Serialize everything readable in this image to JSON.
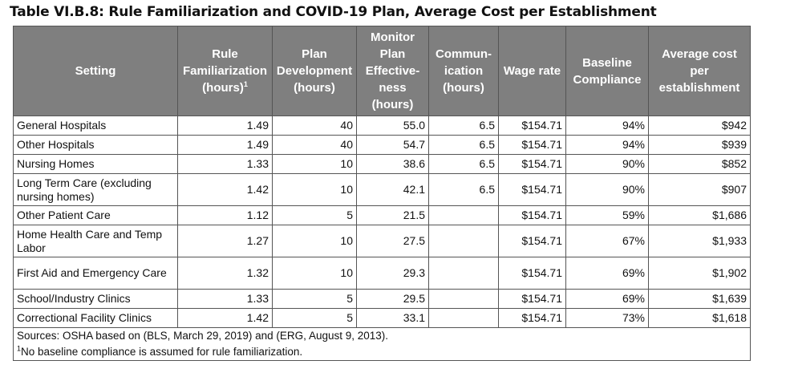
{
  "title": "Table VI.B.8: Rule Familiarization and COVID-19 Plan, Average Cost per Establishment",
  "headers": {
    "setting": "Setting",
    "rule_fam": [
      "Rule",
      "Familiarization",
      "(hours)"
    ],
    "rule_fam_sup": "1",
    "plan_dev": [
      "Plan",
      "Development",
      "(hours)"
    ],
    "monitor": [
      "Monitor",
      "Plan",
      "Effective-",
      "ness",
      "(hours)"
    ],
    "communication": [
      "Commun-",
      "ication",
      "(hours)"
    ],
    "wage": "Wage rate",
    "baseline": [
      "Baseline",
      "Compliance"
    ],
    "avg_cost": [
      "Average cost",
      "per",
      "establishment"
    ]
  },
  "rows": [
    {
      "setting": "General Hospitals",
      "rule_fam": "1.49",
      "plan_dev": "40",
      "monitor": "55.0",
      "communication": "6.5",
      "wage": "$154.71",
      "baseline": "94%",
      "avg_cost": "$942"
    },
    {
      "setting": "Other Hospitals",
      "rule_fam": "1.49",
      "plan_dev": "40",
      "monitor": "54.7",
      "communication": "6.5",
      "wage": "$154.71",
      "baseline": "94%",
      "avg_cost": "$939"
    },
    {
      "setting": "Nursing Homes",
      "rule_fam": "1.33",
      "plan_dev": "10",
      "monitor": "38.6",
      "communication": "6.5",
      "wage": "$154.71",
      "baseline": "90%",
      "avg_cost": "$852"
    },
    {
      "setting": "Long Term Care (excluding nursing homes)",
      "rule_fam": "1.42",
      "plan_dev": "10",
      "monitor": "42.1",
      "communication": "6.5",
      "wage": "$154.71",
      "baseline": "90%",
      "avg_cost": "$907",
      "tall": true
    },
    {
      "setting": "Other Patient Care",
      "rule_fam": "1.12",
      "plan_dev": "5",
      "monitor": "21.5",
      "communication": "",
      "wage": "$154.71",
      "baseline": "59%",
      "avg_cost": "$1,686"
    },
    {
      "setting": "Home Health Care and Temp Labor",
      "rule_fam": "1.27",
      "plan_dev": "10",
      "monitor": "27.5",
      "communication": "",
      "wage": "$154.71",
      "baseline": "67%",
      "avg_cost": "$1,933",
      "tall": true
    },
    {
      "setting": "First Aid and Emergency Care",
      "rule_fam": "1.32",
      "plan_dev": "10",
      "monitor": "29.3",
      "communication": "",
      "wage": "$154.71",
      "baseline": "69%",
      "avg_cost": "$1,902",
      "tall": true
    },
    {
      "setting": "School/Industry Clinics",
      "rule_fam": "1.33",
      "plan_dev": "5",
      "monitor": "29.5",
      "communication": "",
      "wage": "$154.71",
      "baseline": "69%",
      "avg_cost": "$1,639"
    },
    {
      "setting": "Correctional Facility Clinics",
      "rule_fam": "1.42",
      "plan_dev": "5",
      "monitor": "33.1",
      "communication": "",
      "wage": "$154.71",
      "baseline": "73%",
      "avg_cost": "$1,618"
    }
  ],
  "notes": {
    "sources": "Sources: OSHA based on (BLS, March 29, 2019) and (ERG, August 9, 2013).",
    "footnote_mark": "1",
    "footnote": "No baseline compliance is assumed for rule familiarization."
  }
}
